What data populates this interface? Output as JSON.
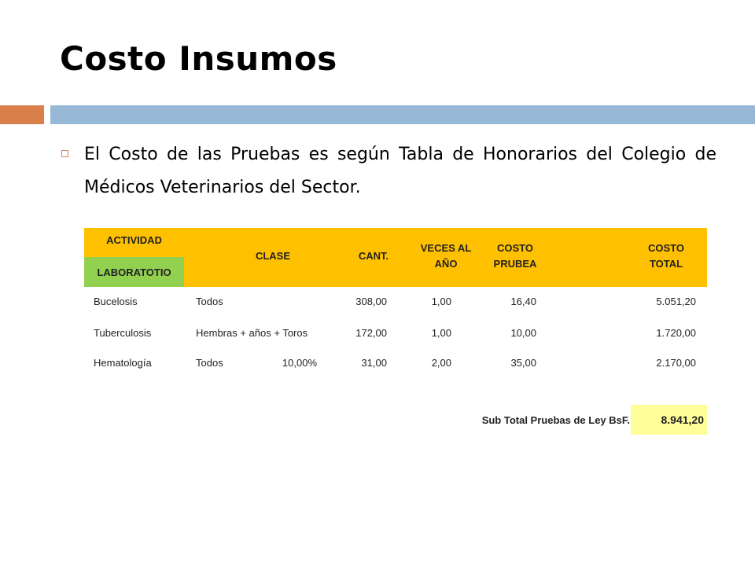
{
  "slide": {
    "title": "Costo Insumos",
    "bullet": "El Costo de las Pruebas es según Tabla de Honorarios del Colegio de Médicos Veterinarios del Sector."
  },
  "colors": {
    "title_bar_orange": "#d9804a",
    "title_bar_blue": "#97b8d7",
    "header_yellow": "#ffc000",
    "category_green": "#92d050",
    "subtotal_fill": "#ffff99"
  },
  "table": {
    "headers": {
      "actividad": "ACTIVIDAD",
      "clase": "CLASE",
      "cant": "CANT.",
      "veces_line1": "VECES AL",
      "veces_line2": "AÑO",
      "costo_prueba_line1": "COSTO",
      "costo_prueba_line2": "PRUBEA",
      "costo_total_line1": "COSTO",
      "costo_total_line2": "TOTAL"
    },
    "category": "LABORATOTIO",
    "rows": [
      {
        "actividad": "Bucelosis",
        "clase": "Todos",
        "pct": "",
        "cant": "308,00",
        "veces": "1,00",
        "costo": "16,40",
        "total": "5.051,20"
      },
      {
        "actividad": "Tuberculosis",
        "clase": "Hembras + años + Toros",
        "pct": "",
        "cant": "172,00",
        "veces": "1,00",
        "costo": "10,00",
        "total": "1.720,00"
      },
      {
        "actividad": "Hematología",
        "clase": "Todos",
        "pct": "10,00%",
        "cant": "31,00",
        "veces": "2,00",
        "costo": "35,00",
        "total": "2.170,00"
      }
    ],
    "subtotal_label": "Sub Total Pruebas de Ley  BsF.",
    "subtotal_value": "8.941,20"
  }
}
